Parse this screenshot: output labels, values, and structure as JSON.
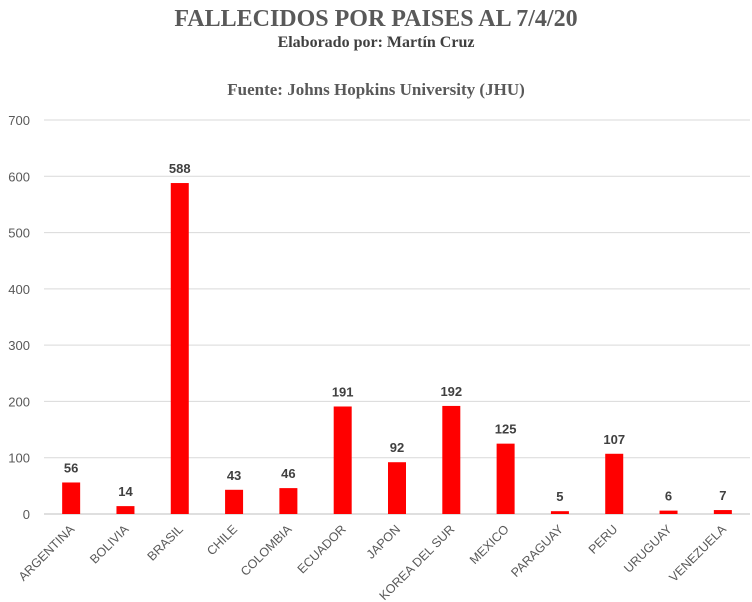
{
  "chart_data": {
    "type": "bar",
    "title": "FALLECIDOS POR PAISES AL 7/4/20",
    "subtitle": "Elaborado por: Martín Cruz",
    "source": "Fuente: Johns Hopkins University (JHU)",
    "categories": [
      "ARGENTINA",
      "BOLIVIA",
      "BRASIL",
      "CHILE",
      "COLOMBIA",
      "ECUADOR",
      "JAPON",
      "KOREA DEL SUR",
      "MEXICO",
      "PARAGUAY",
      "PERU",
      "URUGUAY",
      "VENEZUELA"
    ],
    "values": [
      56,
      14,
      588,
      43,
      46,
      191,
      92,
      192,
      125,
      5,
      107,
      6,
      7
    ],
    "data_labels": [
      "56",
      "14",
      "588",
      "43",
      "46",
      "191",
      "92",
      "192",
      "125",
      "5",
      "107",
      "6",
      "7"
    ],
    "yticks": [
      "0",
      "100",
      "200",
      "300",
      "400",
      "500",
      "600",
      "700"
    ],
    "ylim": [
      0,
      700
    ],
    "bar_color": "#ff0000",
    "grid": true,
    "legend": "none"
  }
}
